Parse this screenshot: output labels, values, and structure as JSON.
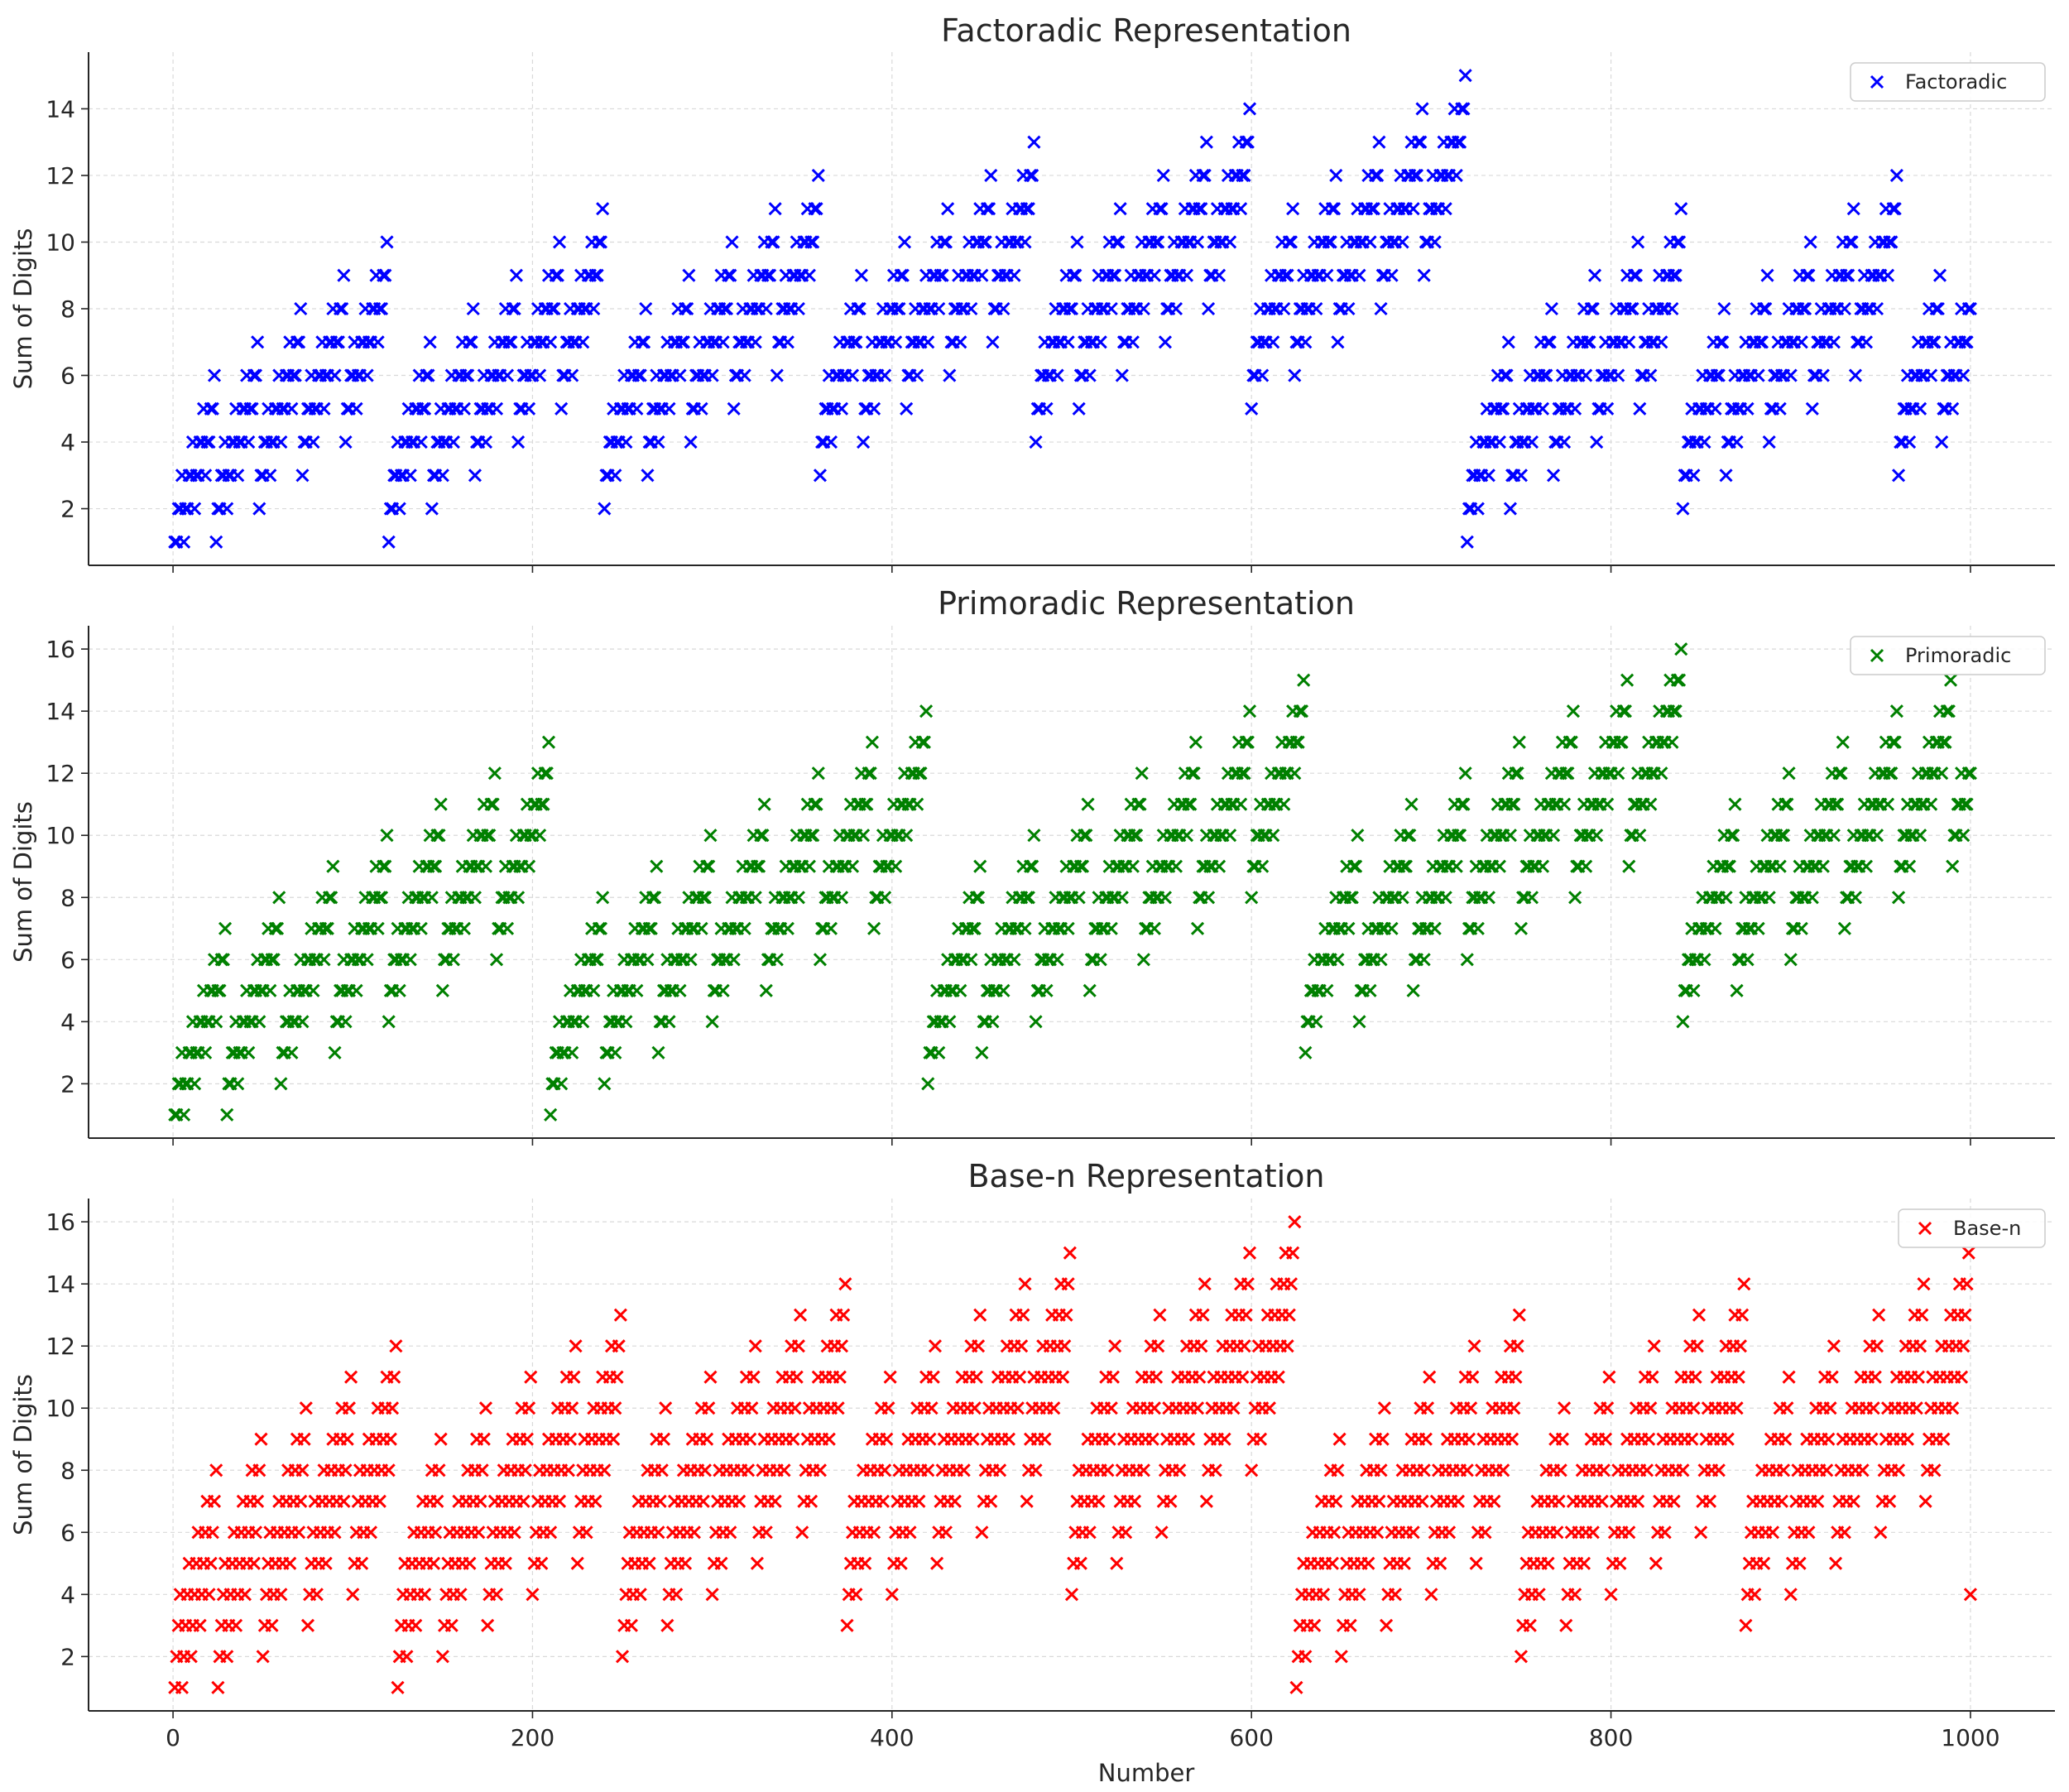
{
  "chart_data": [
    {
      "type": "scatter",
      "title": "Factoradic Representation",
      "ylabel": "Sum of Digits",
      "xlabel": "",
      "xlim": [
        -47,
        1047
      ],
      "ylim": [
        0.3,
        15.7
      ],
      "yticks": [
        2,
        4,
        6,
        8,
        10,
        12,
        14
      ],
      "xticks": [
        0,
        200,
        400,
        600,
        800,
        1000
      ],
      "x_tick_labels_visible": false,
      "grid": true,
      "legend": "top-right",
      "marker": "x",
      "color": "#0000ff",
      "series": [
        {
          "name": "Factoradic",
          "representation": "factoradic",
          "x_range": [
            1,
            1000
          ]
        }
      ]
    },
    {
      "type": "scatter",
      "title": "Primoradic Representation",
      "ylabel": "Sum of Digits",
      "xlabel": "",
      "xlim": [
        -47,
        1047
      ],
      "ylim": [
        0.25,
        16.75
      ],
      "yticks": [
        2,
        4,
        6,
        8,
        10,
        12,
        14,
        16
      ],
      "xticks": [
        0,
        200,
        400,
        600,
        800,
        1000
      ],
      "x_tick_labels_visible": false,
      "grid": true,
      "legend": "top-right",
      "marker": "x",
      "color": "#008000",
      "series": [
        {
          "name": "Primoradic",
          "representation": "primorial",
          "x_range": [
            1,
            1000
          ]
        }
      ]
    },
    {
      "type": "scatter",
      "title": "Base-n Representation",
      "ylabel": "Sum of Digits",
      "xlabel": "Number",
      "xlim": [
        -47,
        1047
      ],
      "ylim": [
        0.25,
        16.75
      ],
      "yticks": [
        2,
        4,
        6,
        8,
        10,
        12,
        14,
        16
      ],
      "xticks": [
        0,
        200,
        400,
        600,
        800,
        1000
      ],
      "x_tick_labels_visible": true,
      "grid": true,
      "legend": "top-right",
      "marker": "x",
      "color": "#ff0000",
      "series": [
        {
          "name": "Base-n",
          "representation": "base5",
          "x_range": [
            1,
            1000
          ]
        }
      ]
    }
  ]
}
